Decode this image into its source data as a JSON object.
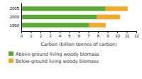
{
  "chart_data": {
    "type": "bar",
    "orientation": "horizontal",
    "stacked": true,
    "categories": [
      "2005",
      "2000",
      "1990"
    ],
    "series": [
      {
        "name": "Above-ground living woody biomass",
        "color": "#5aab2e",
        "values": [
          8.8,
          7.9,
          7.1
        ]
      },
      {
        "name": "Below-ground living woody biomass",
        "color": "#f5a623",
        "values": [
          2.3,
          2.4,
          1.7
        ]
      }
    ],
    "xlabel": "Carbon (billion tonnes of carbon)",
    "xlim": [
      0,
      12
    ],
    "xticks": [
      0,
      1,
      2,
      3,
      4,
      5,
      6,
      7,
      8,
      9,
      10,
      11,
      12
    ],
    "legend": "bottom"
  }
}
